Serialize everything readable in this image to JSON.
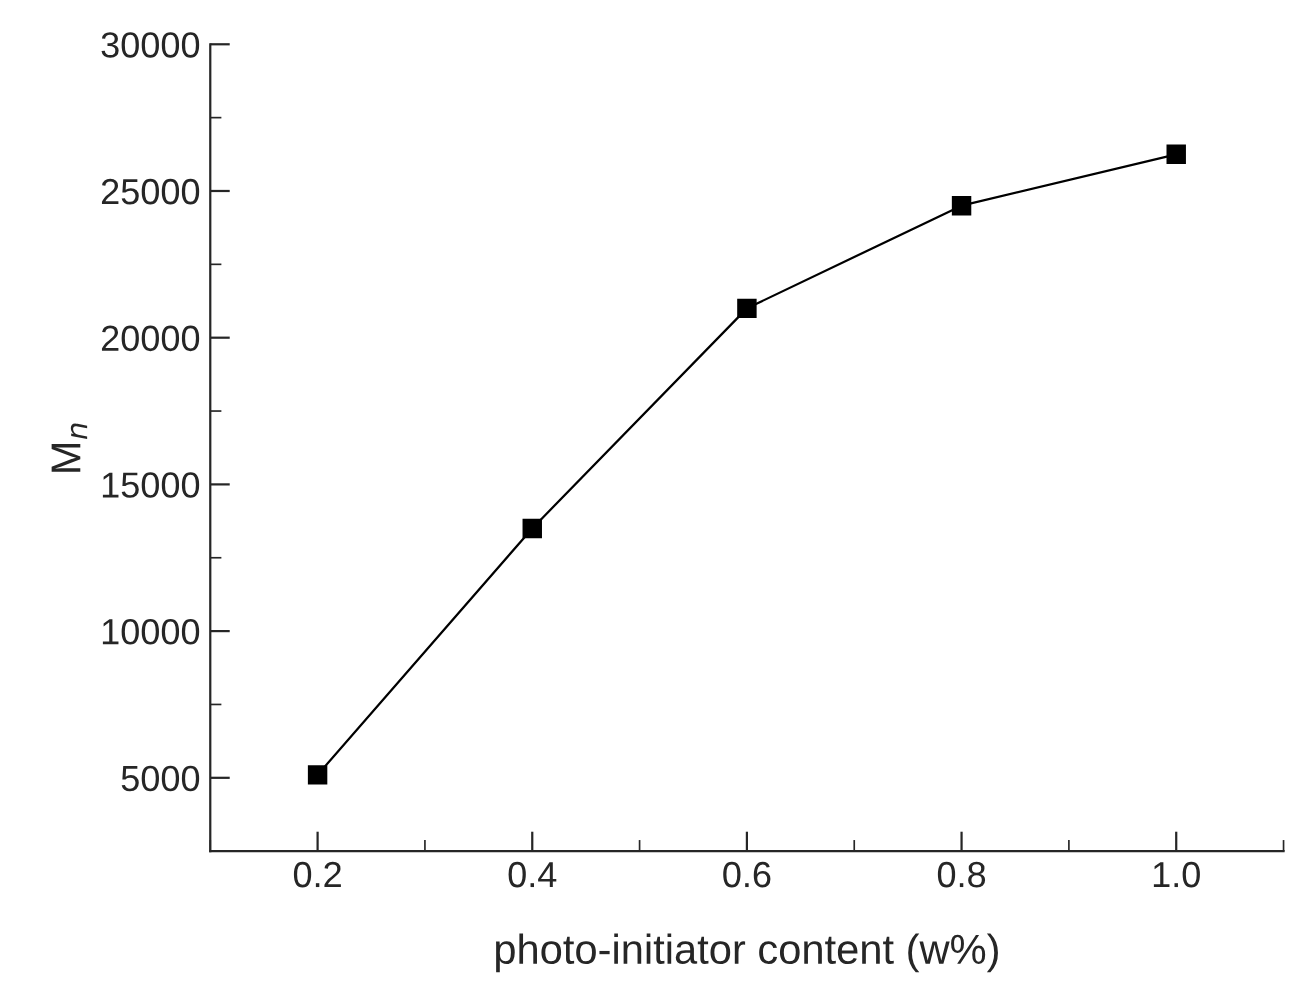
{
  "chart_data": {
    "type": "line",
    "xlabel": "photo-initiator content (w%)",
    "ylabel": "M$_{n}$",
    "x": [
      0.2,
      0.4,
      0.6,
      0.8,
      1.0
    ],
    "series": [
      {
        "color": "#000000",
        "values": [
          5100,
          13500,
          21000,
          24500,
          26250
        ]
      }
    ],
    "xlim": [
      0.1,
      1.1
    ],
    "xticks": [
      {
        "value": 0.2,
        "label": "0.2"
      },
      {
        "value": 0.4,
        "label": "0.4"
      },
      {
        "value": 0.6,
        "label": "0.6"
      },
      {
        "value": 0.8,
        "label": "0.8"
      },
      {
        "value": 1.0,
        "label": "1.0"
      }
    ],
    "ylim": [
      2500,
      30000
    ],
    "yticks": [
      5000,
      10000,
      15000,
      20000,
      25000,
      30000
    ],
    "marker": "square",
    "line_style": "solid",
    "grid": false,
    "legend": false
  }
}
